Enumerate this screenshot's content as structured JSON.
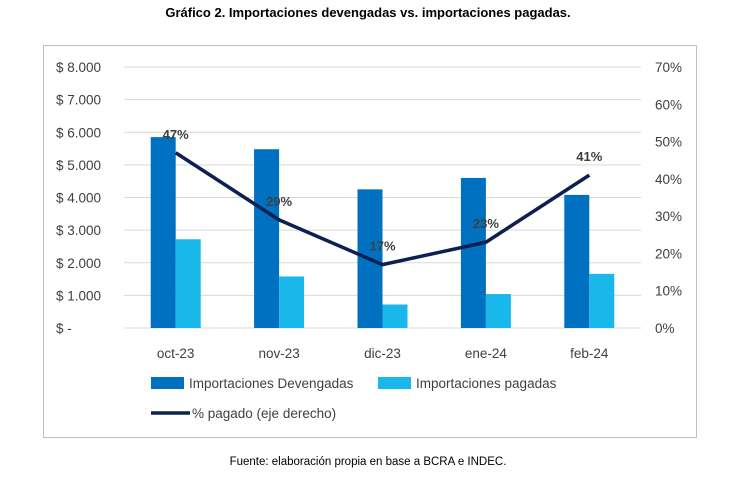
{
  "title": "Gráfico 2. Importaciones devengadas vs. importaciones pagadas.",
  "source": "Fuente: elaboración propia en base a BCRA e INDEC.",
  "colors": {
    "devengadas": "#0070c0",
    "pagadas": "#1ab7ea",
    "pct_line": "#0d2050",
    "grid": "#d9d9d9"
  },
  "chart_data": {
    "type": "bar",
    "categories": [
      "oct-23",
      "nov-23",
      "dic-23",
      "ene-24",
      "feb-24"
    ],
    "series": [
      {
        "name": "Importaciones Devengadas",
        "type": "bar",
        "axis": "left",
        "values": [
          5850,
          5480,
          4250,
          4600,
          4080
        ]
      },
      {
        "name": "Importaciones pagadas",
        "type": "bar",
        "axis": "left",
        "values": [
          2720,
          1580,
          720,
          1040,
          1660
        ]
      },
      {
        "name": "% pagado (eje derecho)",
        "type": "line",
        "axis": "right",
        "values": [
          47,
          29,
          17,
          23,
          41
        ]
      }
    ],
    "data_labels": [
      "47%",
      "29%",
      "17%",
      "23%",
      "41%"
    ],
    "y_left": {
      "range": [
        0,
        8000
      ],
      "tick_labels": [
        "$ -",
        "$ 1.000",
        "$ 2.000",
        "$ 3.000",
        "$ 4.000",
        "$ 5.000",
        "$ 6.000",
        "$ 7.000",
        "$ 8.000"
      ]
    },
    "y_right": {
      "range": [
        0,
        70
      ],
      "tick_labels": [
        "0%",
        "10%",
        "20%",
        "30%",
        "40%",
        "50%",
        "60%",
        "70%"
      ]
    },
    "grid": true,
    "legend_position": "bottom"
  }
}
